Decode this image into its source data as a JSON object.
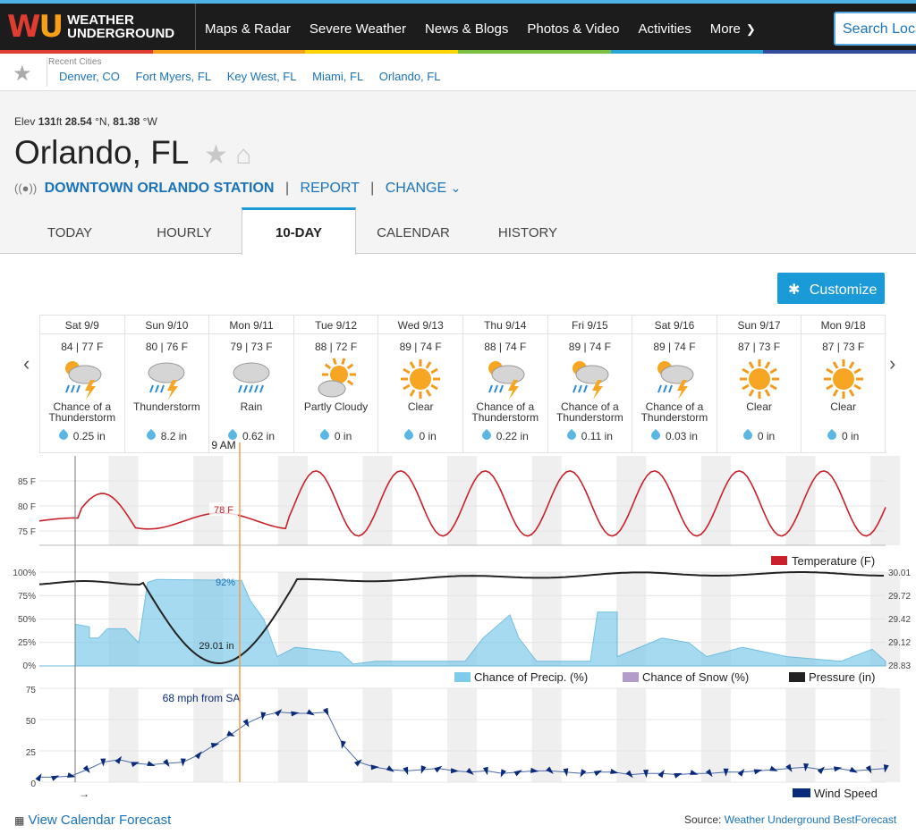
{
  "header": {
    "logo_text": "WEATHER UNDERGROUND",
    "nav": [
      "Maps & Radar",
      "Severe Weather",
      "News & Blogs",
      "Photos & Video",
      "Activities",
      "More"
    ],
    "search_placeholder": "Search Locations"
  },
  "recent": {
    "label": "Recent Cities",
    "cities": [
      "Denver, CO",
      "Fort Myers, FL",
      "Key West, FL",
      "Miami, FL",
      "Orlando, FL"
    ]
  },
  "location": {
    "elev_label": "Elev",
    "elev": "131",
    "elev_unit": "ft",
    "lat": "28.54",
    "lat_unit": "°N,",
    "lon": "81.38",
    "lon_unit": "°W",
    "city": "Orlando, FL",
    "station": "DOWNTOWN ORLANDO STATION",
    "report": "REPORT",
    "change": "CHANGE"
  },
  "tabs": [
    "TODAY",
    "HOURLY",
    "10-DAY",
    "CALENDAR",
    "HISTORY"
  ],
  "customize_label": "Customize",
  "days": [
    {
      "date": "Sat 9/9",
      "temps": "84 | 77 F",
      "icon": "thunderstorm-sun-icon",
      "cond": "Chance of a Thunderstorm",
      "precip": "0.25 in"
    },
    {
      "date": "Sun 9/10",
      "temps": "80 | 76 F",
      "icon": "thunderstorm-icon",
      "cond": "Thunderstorm",
      "precip": "8.2 in"
    },
    {
      "date": "Mon 9/11",
      "temps": "79 | 73 F",
      "icon": "rain-icon",
      "cond": "Rain",
      "precip": "0.62 in"
    },
    {
      "date": "Tue 9/12",
      "temps": "88 | 72 F",
      "icon": "partly-cloudy-icon",
      "cond": "Partly Cloudy",
      "precip": "0 in"
    },
    {
      "date": "Wed 9/13",
      "temps": "89 | 74 F",
      "icon": "sun-icon",
      "cond": "Clear",
      "precip": "0 in"
    },
    {
      "date": "Thu 9/14",
      "temps": "88 | 74 F",
      "icon": "thunderstorm-sun-icon",
      "cond": "Chance of a Thunderstorm",
      "precip": "0.22 in"
    },
    {
      "date": "Fri 9/15",
      "temps": "89 | 74 F",
      "icon": "thunderstorm-sun-icon",
      "cond": "Chance of a Thunderstorm",
      "precip": "0.11 in"
    },
    {
      "date": "Sat 9/16",
      "temps": "89 | 74 F",
      "icon": "thunderstorm-sun-icon",
      "cond": "Chance of a Thunderstorm",
      "precip": "0.03 in"
    },
    {
      "date": "Sun 9/17",
      "temps": "87 | 73 F",
      "icon": "sun-icon",
      "cond": "Clear",
      "precip": "0 in"
    },
    {
      "date": "Mon 9/18",
      "temps": "87 | 73 F",
      "icon": "sun-icon",
      "cond": "Clear",
      "precip": "0 in"
    }
  ],
  "chart_data": [
    {
      "type": "line",
      "series": [
        {
          "name": "Temperature (F)",
          "color": "#c8212b"
        }
      ],
      "yticks": [
        "85 F",
        "80 F",
        "75 F"
      ],
      "ylim": [
        73,
        87
      ],
      "cursor_label": "9 AM",
      "cursor_value": "78 F"
    },
    {
      "type": "area",
      "series": [
        {
          "name": "Chance of Precip. (%)",
          "color": "#7fcbea"
        },
        {
          "name": "Chance of Snow (%)",
          "color": "#b39cc9"
        },
        {
          "name": "Pressure (in)",
          "color": "#222222"
        }
      ],
      "yticks_left": [
        "100%",
        "75%",
        "50%",
        "25%",
        "0%"
      ],
      "yticks_right": [
        "30.01",
        "29.72",
        "29.42",
        "29.12",
        "28.83"
      ],
      "annotations": [
        "92%",
        "29.01 in"
      ]
    },
    {
      "type": "line",
      "series": [
        {
          "name": "Wind Speed",
          "color": "#0a2a7a"
        }
      ],
      "yticks": [
        "75",
        "50",
        "25",
        "0"
      ],
      "ylim": [
        0,
        75
      ],
      "annotation": "68 mph from SA"
    }
  ],
  "footer": {
    "calendar_link": "View Calendar Forecast",
    "source_label": "Source:",
    "source_link": "Weather Underground BestForecast",
    "arrow": "→"
  }
}
